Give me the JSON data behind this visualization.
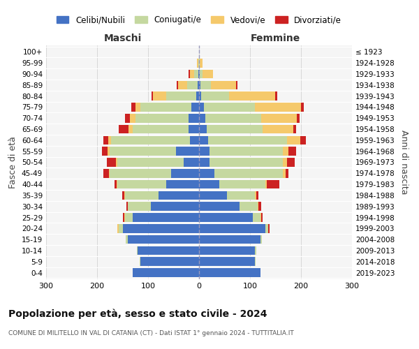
{
  "age_groups": [
    "0-4",
    "5-9",
    "10-14",
    "15-19",
    "20-24",
    "25-29",
    "30-34",
    "35-39",
    "40-44",
    "45-49",
    "50-54",
    "55-59",
    "60-64",
    "65-69",
    "70-74",
    "75-79",
    "80-84",
    "85-89",
    "90-94",
    "95-99",
    "100+"
  ],
  "birth_years": [
    "2019-2023",
    "2014-2018",
    "2009-2013",
    "2004-2008",
    "1999-2003",
    "1994-1998",
    "1989-1993",
    "1984-1988",
    "1979-1983",
    "1974-1978",
    "1969-1973",
    "1964-1968",
    "1959-1963",
    "1954-1958",
    "1949-1953",
    "1944-1948",
    "1939-1943",
    "1934-1938",
    "1929-1933",
    "1924-1928",
    "≤ 1923"
  ],
  "males": {
    "celibi": [
      130,
      115,
      120,
      140,
      150,
      130,
      95,
      80,
      65,
      55,
      30,
      45,
      18,
      20,
      20,
      15,
      5,
      3,
      2,
      0,
      0
    ],
    "coniugati": [
      0,
      1,
      2,
      4,
      8,
      15,
      45,
      65,
      95,
      120,
      130,
      130,
      155,
      110,
      105,
      100,
      60,
      20,
      8,
      2,
      0
    ],
    "vedovi": [
      0,
      0,
      0,
      0,
      2,
      2,
      0,
      1,
      1,
      2,
      3,
      5,
      5,
      8,
      10,
      10,
      25,
      18,
      8,
      2,
      0
    ],
    "divorziati": [
      0,
      0,
      0,
      0,
      0,
      2,
      2,
      5,
      5,
      10,
      18,
      10,
      10,
      20,
      10,
      8,
      3,
      3,
      2,
      0,
      0
    ]
  },
  "females": {
    "nubili": [
      120,
      110,
      110,
      120,
      130,
      105,
      80,
      55,
      40,
      30,
      20,
      20,
      18,
      15,
      12,
      10,
      4,
      3,
      2,
      0,
      0
    ],
    "coniugate": [
      0,
      1,
      2,
      3,
      5,
      15,
      35,
      55,
      90,
      135,
      145,
      145,
      155,
      110,
      110,
      100,
      55,
      20,
      5,
      2,
      0
    ],
    "vedove": [
      0,
      0,
      0,
      0,
      1,
      2,
      2,
      2,
      3,
      5,
      8,
      10,
      25,
      60,
      70,
      90,
      90,
      50,
      20,
      5,
      0
    ],
    "divorziate": [
      0,
      0,
      0,
      0,
      2,
      3,
      5,
      5,
      25,
      5,
      15,
      15,
      12,
      5,
      5,
      5,
      5,
      2,
      0,
      0,
      0
    ]
  },
  "colors": {
    "celibi": "#4472c4",
    "coniugati": "#c5d8a0",
    "vedovi": "#f5c96b",
    "divorziati": "#cc2222"
  },
  "title": "Popolazione per età, sesso e stato civile - 2024",
  "subtitle": "COMUNE DI MILITELLO IN VAL DI CATANIA (CT) - Dati ISTAT 1° gennaio 2024 - TUTTITALIA.IT",
  "xlabel_left": "Maschi",
  "xlabel_right": "Femmine",
  "ylabel_left": "Fasce di età",
  "ylabel_right": "Anni di nascita",
  "legend_labels": [
    "Celibi/Nubili",
    "Coniugati/e",
    "Vedovi/e",
    "Divorziati/e"
  ],
  "xlim": 300,
  "bg_color": "#ffffff",
  "grid_color": "#cccccc"
}
